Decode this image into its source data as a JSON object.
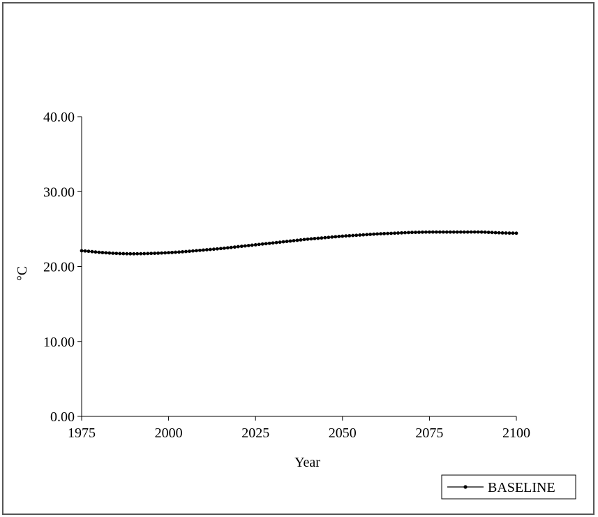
{
  "chart_data": {
    "type": "line",
    "title": "",
    "xlabel": "Year",
    "ylabel": "°C",
    "xlim": [
      1975,
      2100
    ],
    "ylim": [
      0,
      40
    ],
    "x_ticks": [
      "1975",
      "2000",
      "2025",
      "2050",
      "2075",
      "2100"
    ],
    "y_ticks": [
      "0.00",
      "10.00",
      "20.00",
      "30.00",
      "40.00"
    ],
    "grid": false,
    "legend_position": "bottom-right",
    "series": [
      {
        "name": "BASELINE",
        "color": "#000000",
        "marker": "circle",
        "points": [
          [
            1975,
            22.1
          ],
          [
            1980,
            21.9
          ],
          [
            1985,
            21.75
          ],
          [
            1990,
            21.7
          ],
          [
            1995,
            21.75
          ],
          [
            2000,
            21.85
          ],
          [
            2005,
            22.0
          ],
          [
            2010,
            22.2
          ],
          [
            2015,
            22.4
          ],
          [
            2020,
            22.65
          ],
          [
            2025,
            22.9
          ],
          [
            2030,
            23.15
          ],
          [
            2035,
            23.4
          ],
          [
            2040,
            23.65
          ],
          [
            2045,
            23.85
          ],
          [
            2050,
            24.05
          ],
          [
            2055,
            24.2
          ],
          [
            2060,
            24.35
          ],
          [
            2065,
            24.45
          ],
          [
            2070,
            24.55
          ],
          [
            2075,
            24.6
          ],
          [
            2080,
            24.6
          ],
          [
            2085,
            24.6
          ],
          [
            2090,
            24.6
          ],
          [
            2095,
            24.5
          ],
          [
            2100,
            24.45
          ]
        ]
      }
    ]
  }
}
